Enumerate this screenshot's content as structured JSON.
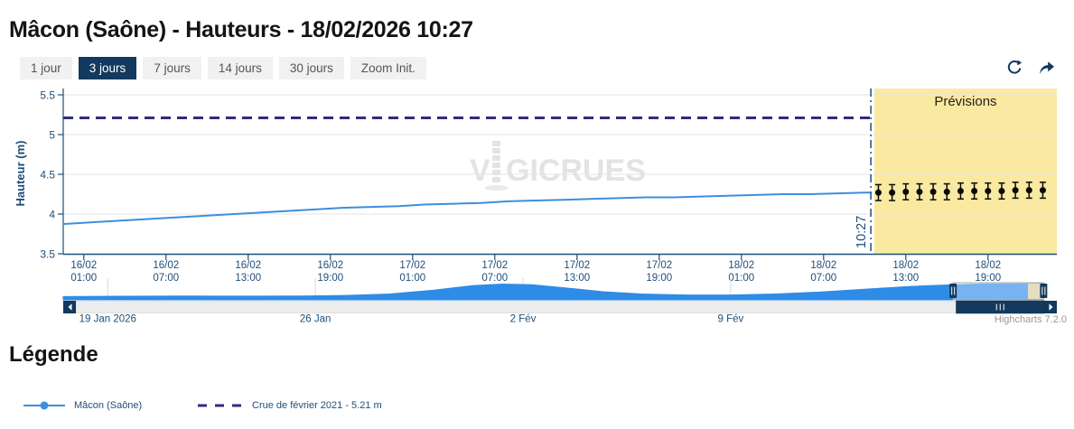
{
  "header": {
    "title": "Mâcon (Saône) - Hauteurs - 18/02/2026 10:27"
  },
  "toolbar": {
    "buttons": [
      {
        "label": "1 jour",
        "active": false
      },
      {
        "label": "3 jours",
        "active": true
      },
      {
        "label": "7 jours",
        "active": false
      },
      {
        "label": "14 jours",
        "active": false
      },
      {
        "label": "30 jours",
        "active": false
      },
      {
        "label": "Zoom Init.",
        "active": false
      }
    ],
    "icons": [
      "refresh-icon",
      "share-icon"
    ]
  },
  "colors": {
    "navy_text": "#1f4e79",
    "dark_navy": "#12395e",
    "series_blue": "#3e8ede",
    "threshold_navy": "#2d2d7f",
    "forecast_yellow": "#fae9a0",
    "navigator_blue": "#2e8ce6",
    "navigator_forecast_tan": "#d6cb9e",
    "gridline": "#e6e6e6",
    "credit_gray": "#999999"
  },
  "chart_data": {
    "type": "line",
    "title": "",
    "xlabel": "",
    "ylabel": "Hauteur (m)",
    "ylim": [
      3.5,
      5.5
    ],
    "grid": true,
    "yticks": [
      {
        "v": 5.5,
        "label": "5.5"
      },
      {
        "v": 5.0,
        "label": "5"
      },
      {
        "v": 4.5,
        "label": "4.5"
      },
      {
        "v": 4.0,
        "label": "4"
      },
      {
        "v": 3.5,
        "label": "3.5"
      }
    ],
    "xticks": [
      {
        "t": 1,
        "date": "16/02",
        "time": "01:00"
      },
      {
        "t": 7,
        "date": "16/02",
        "time": "07:00"
      },
      {
        "t": 13,
        "date": "16/02",
        "time": "13:00"
      },
      {
        "t": 19,
        "date": "16/02",
        "time": "19:00"
      },
      {
        "t": 25,
        "date": "17/02",
        "time": "01:00"
      },
      {
        "t": 31,
        "date": "17/02",
        "time": "07:00"
      },
      {
        "t": 37,
        "date": "17/02",
        "time": "13:00"
      },
      {
        "t": 43,
        "date": "17/02",
        "time": "19:00"
      },
      {
        "t": 49,
        "date": "18/02",
        "time": "01:00"
      },
      {
        "t": 55,
        "date": "18/02",
        "time": "07:00"
      },
      {
        "t": 61,
        "date": "18/02",
        "time": "13:00"
      },
      {
        "t": 67,
        "date": "18/02",
        "time": "19:00"
      }
    ],
    "series": [
      {
        "name": "Mâcon (Saône)",
        "color": "#3e8ede",
        "points": [
          [
            -0.5,
            3.875
          ],
          [
            0,
            3.88
          ],
          [
            2,
            3.9
          ],
          [
            4,
            3.92
          ],
          [
            6,
            3.94
          ],
          [
            8,
            3.96
          ],
          [
            10,
            3.98
          ],
          [
            12,
            4.0
          ],
          [
            14,
            4.02
          ],
          [
            16,
            4.04
          ],
          [
            18,
            4.06
          ],
          [
            20,
            4.08
          ],
          [
            22,
            4.09
          ],
          [
            24,
            4.1
          ],
          [
            26,
            4.12
          ],
          [
            28,
            4.13
          ],
          [
            30,
            4.14
          ],
          [
            32,
            4.16
          ],
          [
            34,
            4.17
          ],
          [
            36,
            4.18
          ],
          [
            38,
            4.19
          ],
          [
            40,
            4.2
          ],
          [
            42,
            4.21
          ],
          [
            44,
            4.21
          ],
          [
            46,
            4.22
          ],
          [
            48,
            4.23
          ],
          [
            50,
            4.24
          ],
          [
            52,
            4.25
          ],
          [
            54,
            4.25
          ],
          [
            56,
            4.26
          ],
          [
            58,
            4.27
          ],
          [
            58.45,
            4.27
          ]
        ]
      }
    ],
    "forecast": {
      "name": "Prévisions",
      "color": "#0a0a0a",
      "error": 0.05,
      "points": [
        [
          59,
          4.27
        ],
        [
          60,
          4.27
        ],
        [
          61,
          4.28
        ],
        [
          62,
          4.28
        ],
        [
          63,
          4.28
        ],
        [
          64,
          4.28
        ],
        [
          65,
          4.29
        ],
        [
          66,
          4.29
        ],
        [
          67,
          4.29
        ],
        [
          68,
          4.29
        ],
        [
          69,
          4.3
        ],
        [
          70,
          4.3
        ],
        [
          71,
          4.3
        ]
      ]
    },
    "threshold": {
      "label": "Crue de février 2021 - 5.21 m",
      "value": 5.21,
      "color": "#2d2d7f"
    },
    "now": {
      "t": 58.45,
      "label": "10:27"
    },
    "forecast_band": {
      "from_h": 58.7,
      "to_h": 72.3,
      "color": "#fae9a0",
      "label": "Prévisions"
    },
    "watermark": {
      "part1": "V",
      "part2": "GICRUES",
      "color": "#e3e3e3"
    }
  },
  "navigator": {
    "area_color": "#2e8ce6",
    "forecast_color": "#d6cb9e",
    "points": [
      [
        0,
        0.2
      ],
      [
        2,
        0.22
      ],
      [
        4,
        0.24
      ],
      [
        6,
        0.23
      ],
      [
        8,
        0.24
      ],
      [
        9.5,
        0.27
      ],
      [
        11,
        0.36
      ],
      [
        12.5,
        0.6
      ],
      [
        13.8,
        0.88
      ],
      [
        14.8,
        0.97
      ],
      [
        15.8,
        0.93
      ],
      [
        17,
        0.72
      ],
      [
        18.2,
        0.5
      ],
      [
        19.5,
        0.36
      ],
      [
        21,
        0.3
      ],
      [
        22.5,
        0.3
      ],
      [
        24,
        0.36
      ],
      [
        25.5,
        0.48
      ],
      [
        27,
        0.65
      ],
      [
        28.5,
        0.82
      ],
      [
        30,
        0.93
      ],
      [
        31,
        0.98
      ],
      [
        33.04,
        1.0
      ]
    ],
    "ticks": [
      {
        "d": 1.5,
        "label": "19 Jan 2026"
      },
      {
        "d": 8.5,
        "label": "26 Jan"
      },
      {
        "d": 15.5,
        "label": "2 Fév"
      },
      {
        "d": 22.5,
        "label": "9 Fév"
      }
    ],
    "window": {
      "from_d": 30.0,
      "to_d": 33.05,
      "forecast_from_d": 32.52
    },
    "scrollbar": {
      "thumb_from_d": 30.1,
      "thumb_to_d": 33.07
    }
  },
  "credits": "Highcharts 7.2.0",
  "legend": {
    "heading": "Légende",
    "items": [
      {
        "label": "Mâcon (Saône)"
      },
      {
        "label": "Crue de février 2021 - 5.21 m"
      }
    ]
  }
}
